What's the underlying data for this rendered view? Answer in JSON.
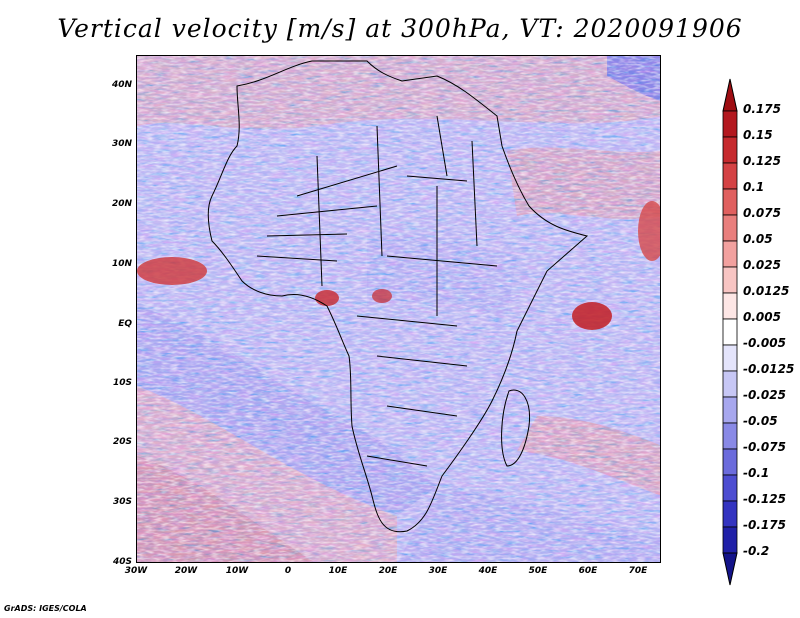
{
  "title": "Vertical velocity [m/s] at 300hPa, VT: 2020091906",
  "map": {
    "region": "Africa",
    "field": "vertical velocity",
    "lat_labels": [
      "40N",
      "30N",
      "20N",
      "10N",
      "EQ",
      "10S",
      "20S",
      "30S",
      "40S"
    ],
    "lon_labels": [
      "30W",
      "20W",
      "10W",
      "0",
      "10E",
      "20E",
      "30E",
      "40E",
      "50E",
      "60E",
      "70E"
    ]
  },
  "colorbar": {
    "labels": [
      "0.175",
      "0.15",
      "0.125",
      "0.1",
      "0.075",
      "0.05",
      "0.025",
      "0.0125",
      "0.005",
      "-0.005",
      "-0.0125",
      "-0.025",
      "-0.05",
      "-0.075",
      "-0.1",
      "-0.125",
      "-0.175",
      "-0.2"
    ],
    "colors": [
      "#9e0d12",
      "#b3181f",
      "#c62a2e",
      "#d44244",
      "#e0605f",
      "#e97f7d",
      "#f2a19f",
      "#f8c5c3",
      "#fde6e5",
      "#ffffff",
      "#e4e4fb",
      "#c7c7f5",
      "#a7a7ee",
      "#8989e6",
      "#6b6bdc",
      "#4d4dd1",
      "#3333c0",
      "#2020a8",
      "#14148a"
    ]
  },
  "credit": "GrADS: IGES/COLA"
}
